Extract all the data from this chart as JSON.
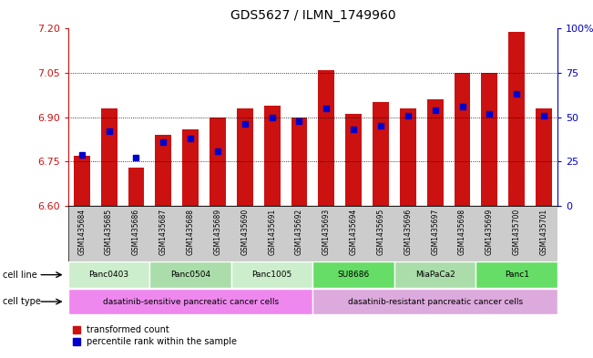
{
  "title": "GDS5627 / ILMN_1749960",
  "samples": [
    "GSM1435684",
    "GSM1435685",
    "GSM1435686",
    "GSM1435687",
    "GSM1435688",
    "GSM1435689",
    "GSM1435690",
    "GSM1435691",
    "GSM1435692",
    "GSM1435693",
    "GSM1435694",
    "GSM1435695",
    "GSM1435696",
    "GSM1435697",
    "GSM1435698",
    "GSM1435699",
    "GSM1435700",
    "GSM1435701"
  ],
  "transformed_count": [
    6.77,
    6.93,
    6.73,
    6.84,
    6.86,
    6.9,
    6.93,
    6.94,
    6.9,
    7.06,
    6.91,
    6.95,
    6.93,
    6.96,
    7.05,
    7.05,
    7.19,
    6.93
  ],
  "percentile_rank": [
    29,
    42,
    27,
    36,
    38,
    31,
    46,
    50,
    48,
    55,
    43,
    45,
    51,
    54,
    56,
    52,
    63,
    51
  ],
  "ylim_left": [
    6.6,
    7.2
  ],
  "ylim_right": [
    0,
    100
  ],
  "yticks_left": [
    6.6,
    6.75,
    6.9,
    7.05,
    7.2
  ],
  "yticks_right": [
    0,
    25,
    50,
    75,
    100
  ],
  "bar_color": "#cc1111",
  "marker_color": "#0000cc",
  "bar_bottom": 6.6,
  "cell_lines": [
    {
      "name": "Panc0403",
      "start": 0,
      "end": 3,
      "color": "#cceecc"
    },
    {
      "name": "Panc0504",
      "start": 3,
      "end": 6,
      "color": "#aaddaa"
    },
    {
      "name": "Panc1005",
      "start": 6,
      "end": 9,
      "color": "#cceecc"
    },
    {
      "name": "SU8686",
      "start": 9,
      "end": 12,
      "color": "#66dd66"
    },
    {
      "name": "MiaPaCa2",
      "start": 12,
      "end": 15,
      "color": "#aaddaa"
    },
    {
      "name": "Panc1",
      "start": 15,
      "end": 18,
      "color": "#66dd66"
    }
  ],
  "cell_types": [
    {
      "name": "dasatinib-sensitive pancreatic cancer cells",
      "start": 0,
      "end": 9,
      "color": "#ee88ee"
    },
    {
      "name": "dasatinib-resistant pancreatic cancer cells",
      "start": 9,
      "end": 18,
      "color": "#ddaadd"
    }
  ],
  "legend_items": [
    {
      "label": "transformed count",
      "color": "#cc1111"
    },
    {
      "label": "percentile rank within the sample",
      "color": "#0000cc"
    }
  ],
  "title_fontsize": 10,
  "axis_label_color_left": "#cc1111",
  "axis_label_color_right": "#0000cc",
  "background_color": "#ffffff",
  "sample_area_color": "#cccccc"
}
